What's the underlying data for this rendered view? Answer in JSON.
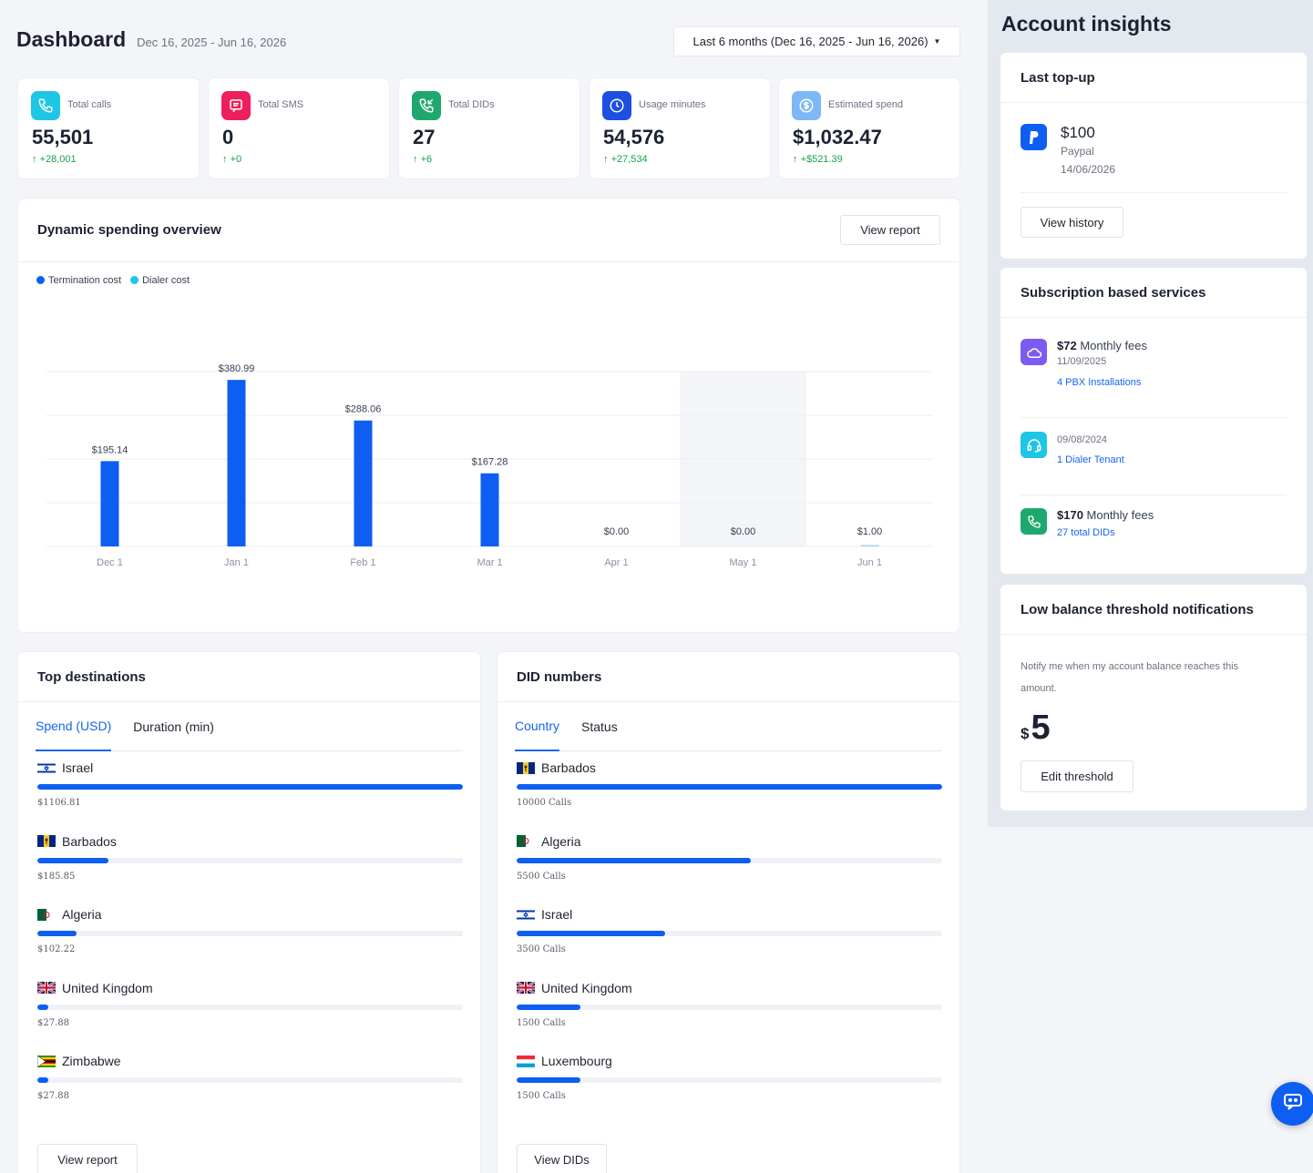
{
  "header": {
    "title": "Dashboard",
    "range_text": "Dec 16, 2025 - Jun 16, 2026",
    "range_select": "Last 6 months (Dec 16, 2025 - Jun 16, 2026)"
  },
  "stats": [
    {
      "label": "Total calls",
      "value": "55,501",
      "delta": "+28,001",
      "icon": "phone-icon",
      "color": "#1ec6e6"
    },
    {
      "label": "Total SMS",
      "value": "0",
      "delta": "+0",
      "icon": "message-icon",
      "color": "#ec1f5c"
    },
    {
      "label": "Total DIDs",
      "value": "27",
      "delta": "+6",
      "icon": "phone-incoming-icon",
      "color": "#1fa86e"
    },
    {
      "label": "Usage minutes",
      "value": "54,576",
      "delta": "+27,534",
      "icon": "clock-icon",
      "color": "#1f4fe0"
    },
    {
      "label": "Estimated spend",
      "value": "$1,032.47",
      "delta": "+$521.39",
      "icon": "dollar-icon",
      "color": "#7db7f5"
    }
  ],
  "spending": {
    "title": "Dynamic spending overview",
    "view_report": "View report"
  },
  "chart_data": {
    "type": "bar",
    "categories": [
      "Dec 1",
      "Jan 1",
      "Feb 1",
      "Mar 1",
      "Apr 1",
      "May 1",
      "Jun 1"
    ],
    "series": [
      {
        "name": "Termination cost",
        "color": "#0e5ef2",
        "values": [
          195.14,
          380.99,
          288.06,
          167.28,
          0,
          0,
          1.0
        ]
      },
      {
        "name": "Dialer cost",
        "color": "#1ec6e6",
        "values": [
          0,
          0,
          0,
          0,
          0,
          0,
          0
        ]
      }
    ],
    "data_labels": [
      "$195.14",
      "$380.99",
      "$288.06",
      "$167.28",
      "$0.00",
      "$0.00",
      "$1.00"
    ],
    "ylim": [
      0,
      400
    ],
    "highlighted_category": "May 1",
    "grid": true,
    "legend": "top-left"
  },
  "top_destinations": {
    "title": "Top destinations",
    "tabs": [
      "Spend (USD)",
      "Duration (min)"
    ],
    "items": [
      {
        "name": "Israel",
        "flag": "israel",
        "value_text": "$1106.81",
        "fraction": 1.0
      },
      {
        "name": "Barbados",
        "flag": "barbados",
        "value_text": "$185.85",
        "fraction": 0.168
      },
      {
        "name": "Algeria",
        "flag": "algeria",
        "value_text": "$102.22",
        "fraction": 0.092
      },
      {
        "name": "United Kingdom",
        "flag": "uk",
        "value_text": "$27.88",
        "fraction": 0.025
      },
      {
        "name": "Zimbabwe",
        "flag": "zimbabwe",
        "value_text": "$27.88",
        "fraction": 0.025
      }
    ],
    "button": "View report"
  },
  "did_numbers": {
    "title": "DID numbers",
    "tabs": [
      "Country",
      "Status"
    ],
    "items": [
      {
        "name": "Barbados",
        "flag": "barbados",
        "value_text": "10000 Calls",
        "fraction": 1.0
      },
      {
        "name": "Algeria",
        "flag": "algeria",
        "value_text": "5500 Calls",
        "fraction": 0.55
      },
      {
        "name": "Israel",
        "flag": "israel",
        "value_text": "3500 Calls",
        "fraction": 0.35
      },
      {
        "name": "United Kingdom",
        "flag": "uk",
        "value_text": "1500 Calls",
        "fraction": 0.15
      },
      {
        "name": "Luxembourg",
        "flag": "luxembourg",
        "value_text": "1500 Calls",
        "fraction": 0.15
      }
    ],
    "button": "View DIDs"
  },
  "insights": {
    "title": "Account insights",
    "topup": {
      "title": "Last top-up",
      "amount": "$100",
      "method": "Paypal",
      "date": "14/06/2026",
      "button": "View history"
    },
    "subscriptions": {
      "title": "Subscription based services",
      "items": [
        {
          "amount": "$72",
          "suffix": " Monthly fees",
          "date": "11/09/2025",
          "link": "4 PBX Installations",
          "icon": "cloud-icon",
          "color": "#7c5cf0"
        },
        {
          "amount": "",
          "suffix": "",
          "date": "09/08/2024",
          "link": "1 Dialer Tenant",
          "icon": "headset-icon",
          "color": "#1ec6e6"
        },
        {
          "amount": "$170",
          "suffix": " Monthly fees",
          "date": "",
          "link": "27 total DIDs",
          "icon": "phone-icon",
          "color": "#1fa86e"
        }
      ]
    },
    "threshold": {
      "title": "Low balance threshold notifications",
      "desc": "Notify me when my account balance reaches this amount.",
      "currency": "$",
      "amount": "5",
      "button": "Edit threshold"
    }
  }
}
